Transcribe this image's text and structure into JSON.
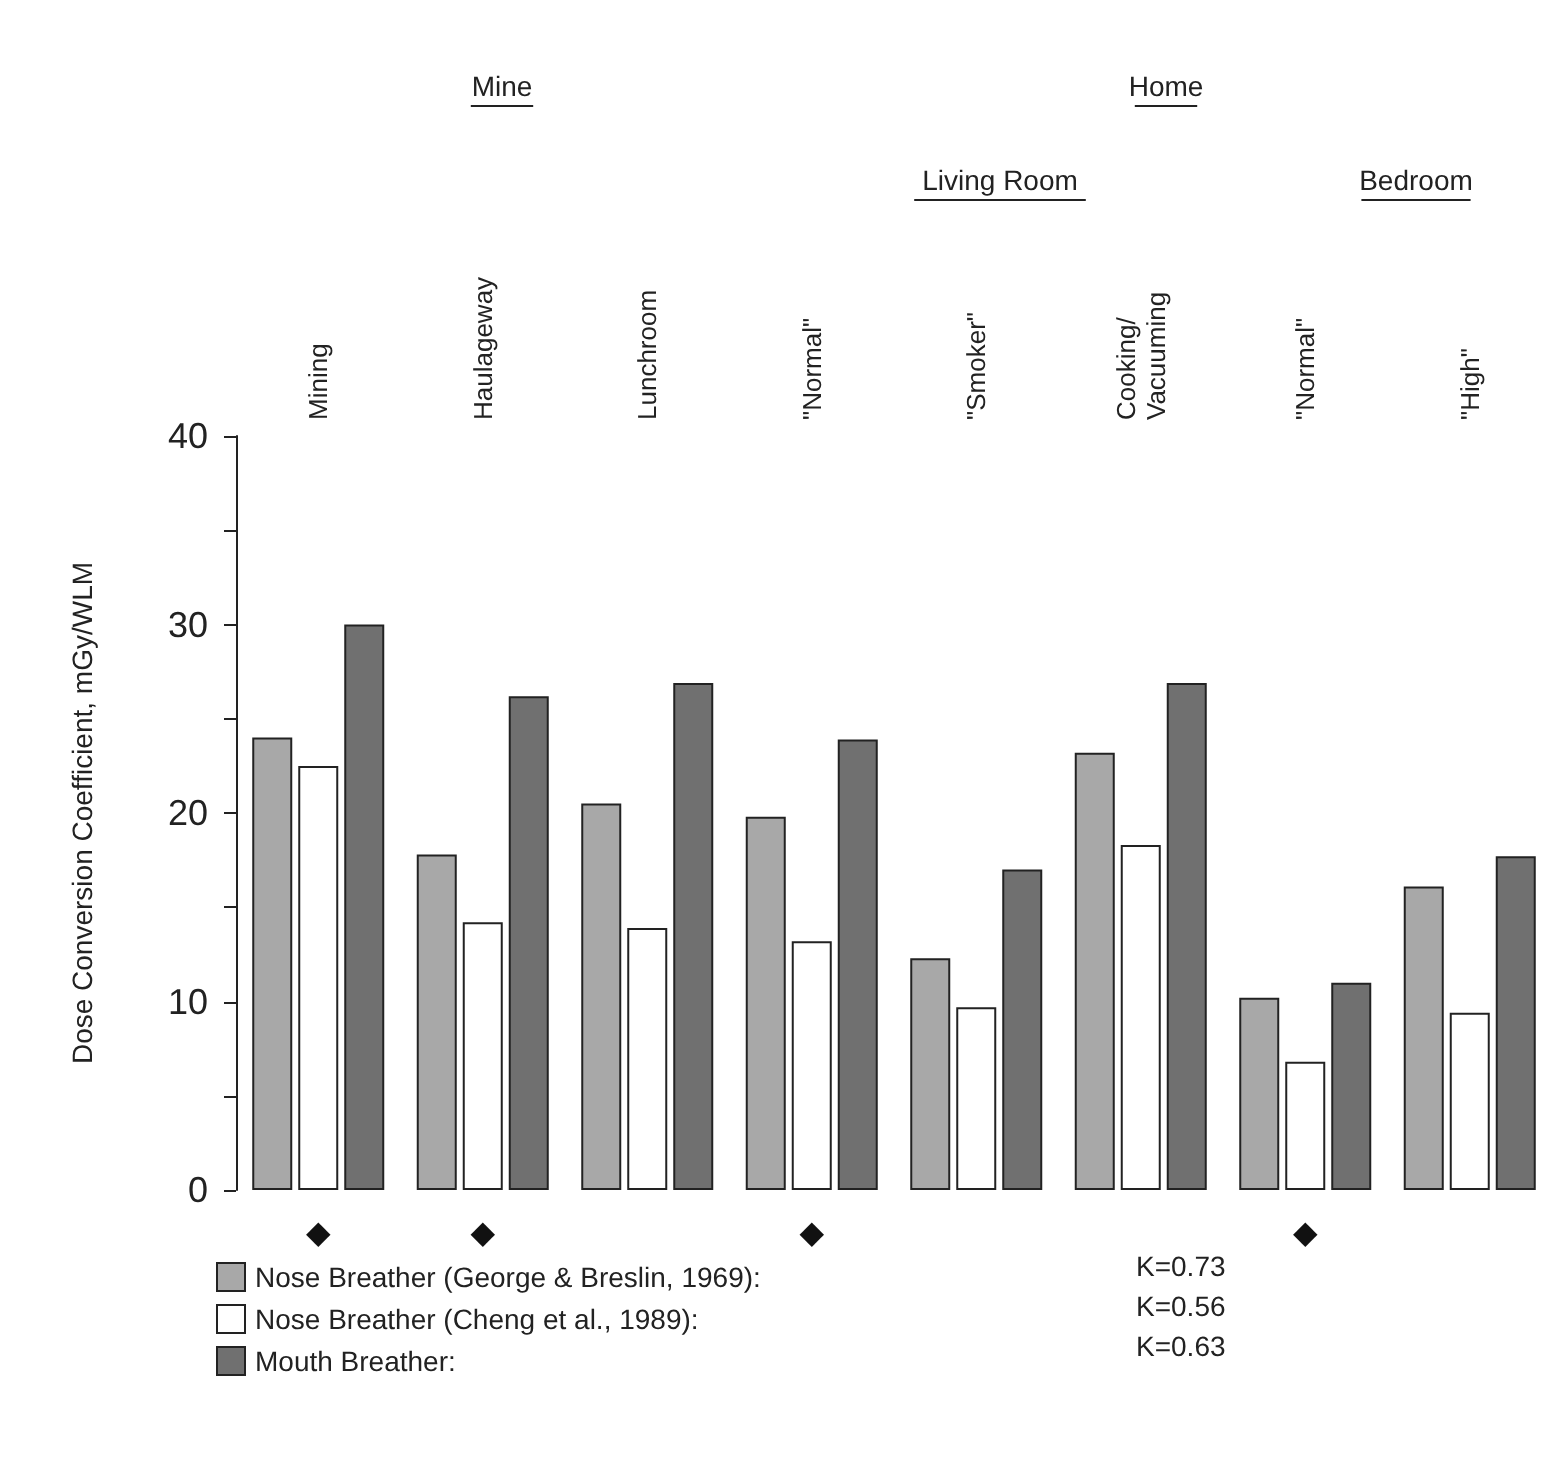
{
  "chart_data": {
    "type": "bar",
    "ylabel": "Dose Conversion Coefficient, mGy/WLM",
    "categories": [
      "Mining",
      "Haulageway",
      "Lunchroom",
      "\"Normal\"",
      "\"Smoker\"",
      "Cooking/\nVacuuming",
      "\"Normal\"",
      "\"High\""
    ],
    "series": [
      {
        "name": "Nose Breather (George & Breslin, 1969):",
        "color": "#a8a8a8",
        "values": [
          24,
          17.8,
          20.5,
          19.8,
          12.3,
          23.2,
          10.2,
          16.1
        ]
      },
      {
        "name": "Nose Breather (Cheng et al., 1989):",
        "color": "#ffffff",
        "values": [
          22.5,
          14.2,
          13.9,
          13.2,
          9.7,
          18.3,
          6.8,
          9.4
        ]
      },
      {
        "name": "Mouth Breather:",
        "color": "#707070",
        "values": [
          30,
          26.2,
          26.9,
          23.9,
          17,
          26.9,
          11,
          17.7
        ]
      }
    ],
    "ylim": [
      0,
      40
    ],
    "yticks": [
      0,
      {
        "value": 5,
        "label": null
      },
      10,
      {
        "value": 15,
        "label": null
      },
      20,
      {
        "value": 25,
        "label": null
      },
      30,
      {
        "value": 35,
        "label": null
      },
      40
    ],
    "legend": "bottom left",
    "grid": false,
    "annotations": [
      "Mine",
      "Home",
      "Living Room",
      "Bedroom",
      "K=0.73",
      "K=0.56",
      "K=0.63",
      "◆",
      "◆",
      "◆",
      "◆"
    ]
  }
}
